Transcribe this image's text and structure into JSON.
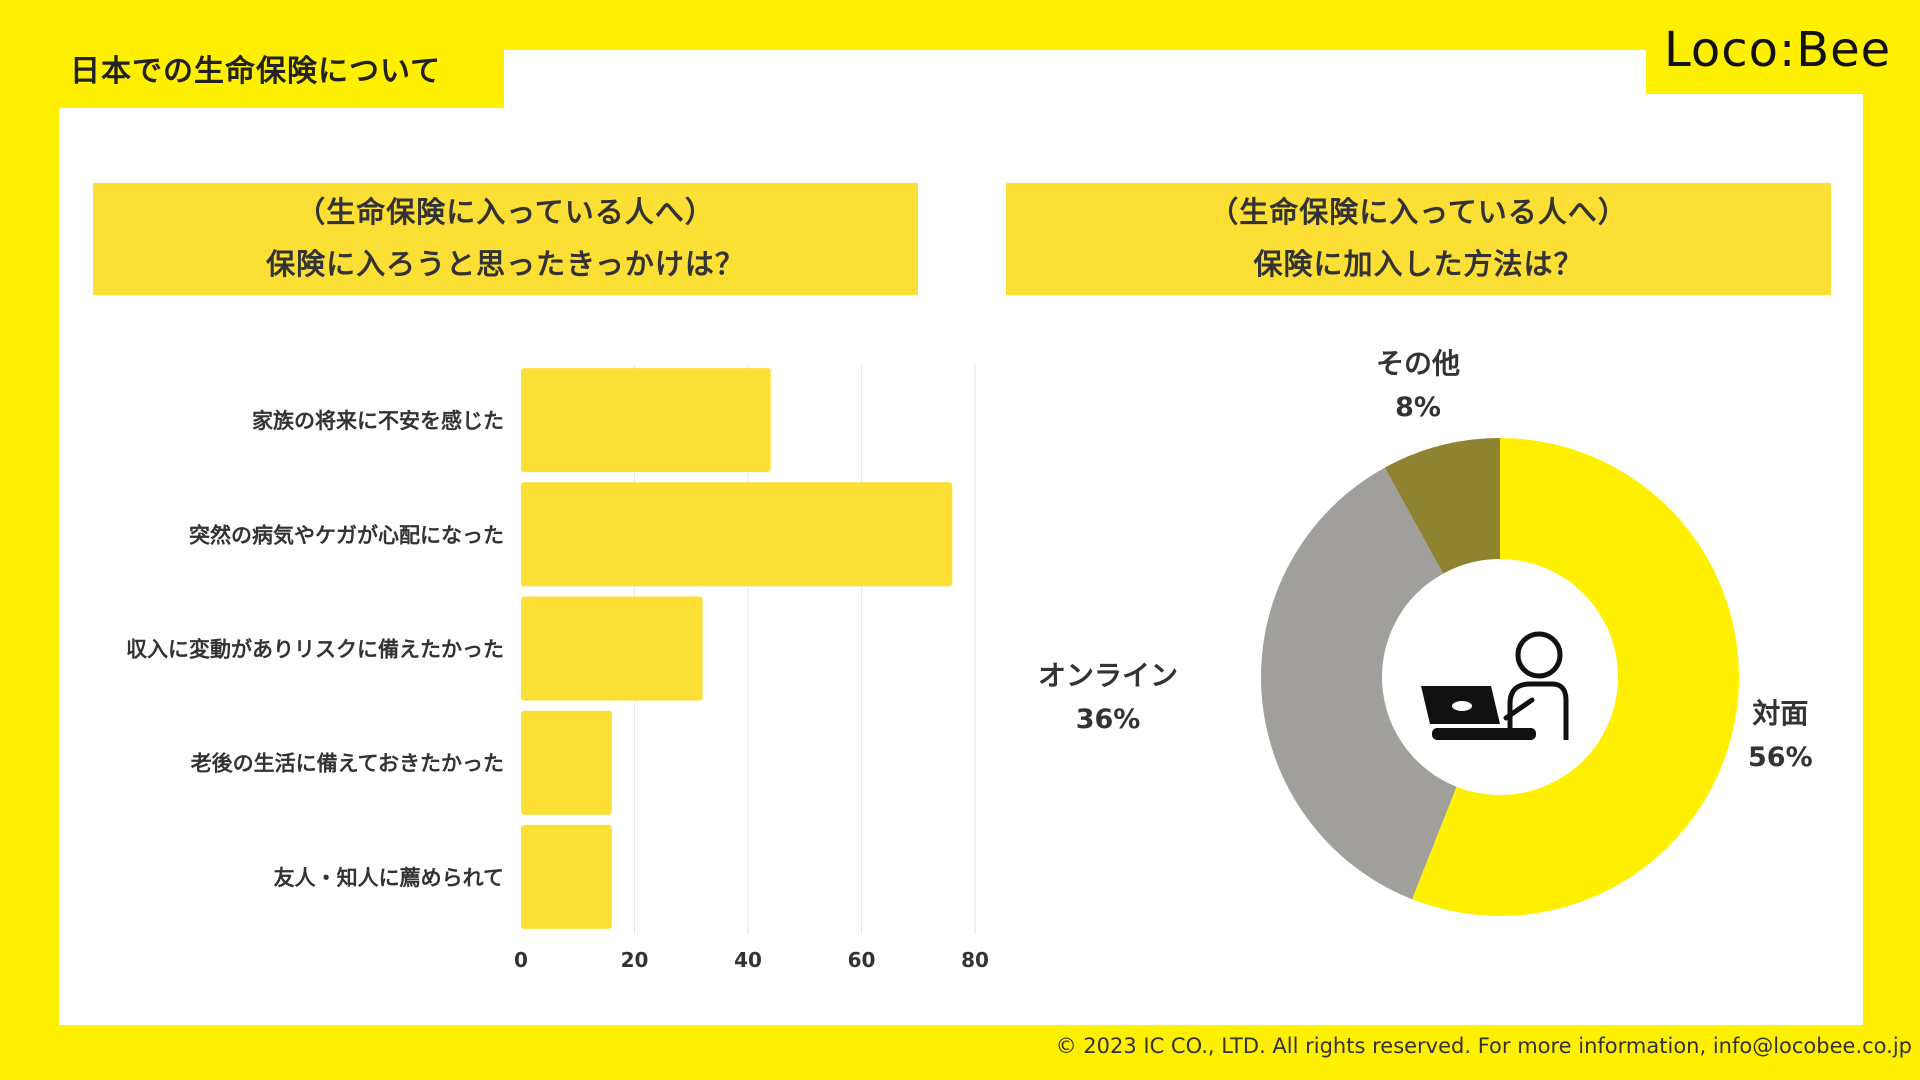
{
  "page": {
    "title": "日本での生命保険について",
    "logo": "Loco:Bee",
    "footer": "© 2023 IC CO., LTD. All rights reserved. For more information, info@locobee.co.jp"
  },
  "colors": {
    "background": "#FFF000",
    "bar": "#FCDF34",
    "pie_face_to_face": "#FFF000",
    "pie_online": "#A09F9B",
    "pie_other": "#8F8230",
    "text": "#333333"
  },
  "left_question": {
    "line1": "（生命保険に入っている人へ）",
    "line2": "保険に入ろうと思ったきっかけは？"
  },
  "right_question": {
    "line1": "（生命保険に入っている人へ）",
    "line2": "保険に加入した方法は？"
  },
  "chart_data": [
    {
      "type": "bar",
      "orientation": "horizontal",
      "title": "（生命保険に入っている人へ）保険に入ろうと思ったきっかけは？",
      "categories": [
        "家族の将来に不安を感じた",
        "突然の病気やケガが心配になった",
        "収入に変動がありリスクに備えたかった",
        "老後の生活に備えておきたかった",
        "友人・知人に薦められて"
      ],
      "values": [
        44,
        76,
        32,
        16,
        16
      ],
      "xlim": [
        0,
        80
      ],
      "xticks": [
        "0",
        "20",
        "40",
        "60",
        "80"
      ],
      "grid": true
    },
    {
      "type": "pie",
      "style": "donut",
      "title": "（生命保険に入っている人へ）保険に加入した方法は？",
      "slices": [
        {
          "label": "対面",
          "value": 56,
          "display": "56%"
        },
        {
          "label": "オンライン",
          "value": 36,
          "display": "36%"
        },
        {
          "label": "その他",
          "value": 8,
          "display": "8%"
        }
      ],
      "center_icon": "person-with-laptop-icon"
    }
  ]
}
